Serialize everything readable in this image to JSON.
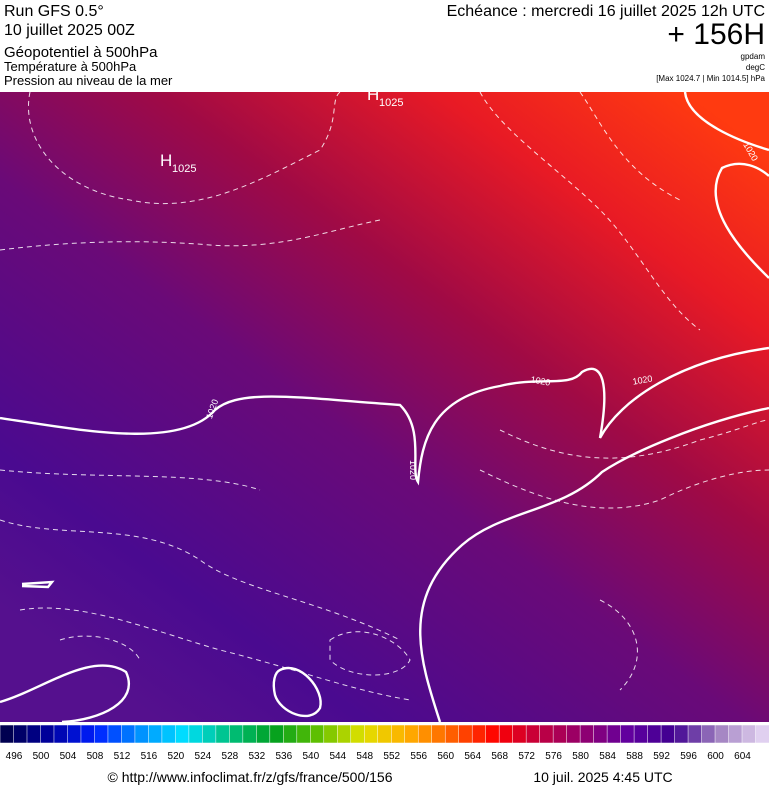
{
  "header": {
    "run": "Run GFS 0.5°",
    "date": "10 juillet 2025 00Z",
    "fields": [
      "Géopotentiel à 500hPa",
      "Température à 500hPa",
      "Pression au niveau de la mer"
    ],
    "valid": "Echéance : mercredi 16 juillet 2025 12h UTC",
    "lead": "+ 156H",
    "units": [
      "gpdam",
      "degC",
      "[Max 1024.7 | Min 1014.5] hPa"
    ]
  },
  "map": {
    "highs": [
      {
        "letter": "H",
        "value": "1025"
      },
      {
        "letter": "H",
        "value": "1025"
      }
    ],
    "isobar_labels": [
      "1020",
      "1020",
      "1020",
      "1020",
      "1020"
    ]
  },
  "colorbar": {
    "labels": [
      496,
      500,
      504,
      508,
      512,
      516,
      520,
      524,
      528,
      532,
      536,
      540,
      544,
      548,
      552,
      556,
      560,
      564,
      568,
      572,
      576,
      580,
      584,
      588,
      592,
      596,
      600,
      604
    ]
  },
  "footer": {
    "source": "© http://www.infoclimat.fr/z/gfs/france/500/156",
    "time": "10 juil. 2025  4:45 UTC"
  }
}
